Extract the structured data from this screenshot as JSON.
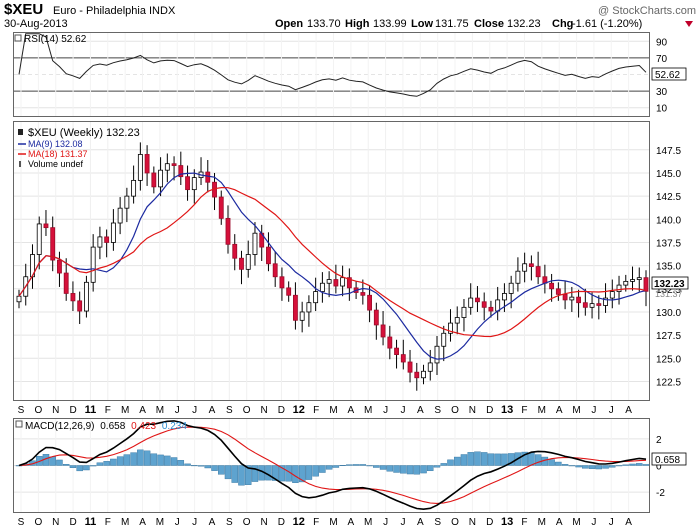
{
  "header": {
    "symbol": "$XEU",
    "name": "Euro - Philadelphia INDX",
    "watermark": "@ StockCharts.com",
    "date": "30-Aug-2013",
    "open_label": "Open",
    "open": "133.70",
    "high_label": "High",
    "high": "133.99",
    "low_label": "Low",
    "low": "131.75",
    "close_label": "Close",
    "close": "132.23",
    "chg_label": "Chg",
    "chg": "-1.61 (-1.20%)"
  },
  "rsi": {
    "label": "RSI(14) 52.62",
    "last_value": "52.62",
    "ticks": [
      "90",
      "70",
      "50",
      "30",
      "10"
    ]
  },
  "price": {
    "legend_main": "$XEU (Weekly) 132.23",
    "legend_ma9": "MA(9) 132.08",
    "legend_ma18": "MA(18) 131.37",
    "legend_volume": "Volume undef",
    "last_close": "132.23",
    "last_ma18": "131.37",
    "ticks": [
      "147.5",
      "145.0",
      "142.5",
      "140.0",
      "137.5",
      "135.0",
      "132.5",
      "130.0",
      "127.5",
      "125.0",
      "122.5"
    ]
  },
  "macd": {
    "label_prefix": "MACD(12,26,9)",
    "label_macd": "0.658",
    "label_signal": "0.423",
    "label_hist": "0.234",
    "last_value": "0.658",
    "ticks": [
      "2",
      "0",
      "-2"
    ]
  },
  "x_axis": {
    "labels": [
      "S",
      "O",
      "N",
      "D",
      "11",
      "F",
      "M",
      "A",
      "M",
      "J",
      "J",
      "A",
      "S",
      "O",
      "N",
      "D",
      "12",
      "F",
      "M",
      "A",
      "M",
      "J",
      "J",
      "A",
      "S",
      "O",
      "N",
      "D",
      "13",
      "F",
      "M",
      "A",
      "M",
      "J",
      "J",
      "A"
    ]
  },
  "chart_data": {
    "type": "candlestick",
    "series_close_weekly": [
      131.7,
      133.8,
      136.2,
      139.5,
      139.1,
      135.6,
      134.2,
      132.0,
      131.2,
      130.1,
      133.2,
      137.0,
      138.1,
      137.5,
      139.6,
      141.2,
      142.5,
      144.2,
      147.0,
      145.0,
      143.5,
      145.3,
      146.0,
      145.8,
      144.6,
      143.2,
      144.5,
      145.1,
      144.0,
      142.4,
      140.1,
      137.3,
      135.8,
      134.6,
      136.2,
      138.5,
      137.0,
      135.2,
      133.8,
      132.6,
      131.8,
      129.1,
      130.0,
      131.0,
      132.2,
      133.1,
      133.5,
      132.8,
      133.7,
      132.6,
      132.1,
      131.8,
      130.2,
      128.6,
      127.3,
      126.1,
      125.4,
      124.6,
      123.5,
      122.9,
      123.6,
      124.5,
      126.3,
      127.7,
      128.8,
      129.4,
      130.5,
      131.5,
      131.1,
      130.5,
      130.1,
      131.3,
      132.0,
      133.1,
      134.4,
      135.2,
      134.9,
      133.8,
      133.1,
      132.5,
      131.9,
      131.3,
      131.6,
      131.0,
      130.5,
      130.9,
      130.7,
      131.5,
      132.2,
      132.9,
      133.3,
      133.5,
      133.7,
      132.23
    ],
    "ma9_last": 132.08,
    "ma18_last": 131.37,
    "rsi14_last": 52.62,
    "macd_last": 0.658,
    "signal_last": 0.423,
    "histogram_last": 0.234,
    "price_ylim": [
      120.5,
      150.5
    ],
    "rsi_ylim": [
      0,
      100
    ],
    "macd_ylim": [
      -3.5,
      3.5
    ]
  }
}
